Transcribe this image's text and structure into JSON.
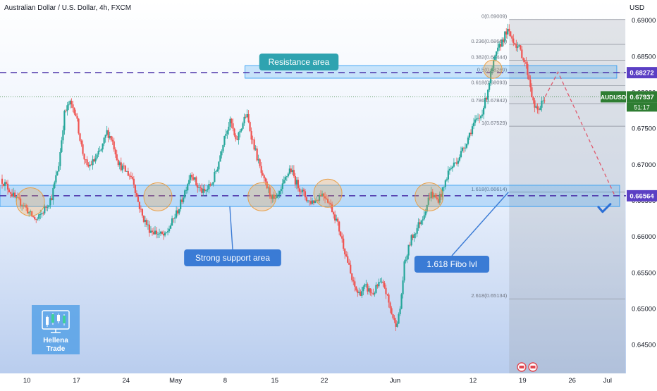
{
  "chart_data": {
    "type": "candlestick",
    "title": "Australian Dollar / U.S. Dollar, 4h, FXCM",
    "currency_label": "USD",
    "symbol": "AUDUSD",
    "y_ticks": [
      "0.69000",
      "0.68500",
      "0.68000",
      "0.67500",
      "0.67000",
      "0.66500",
      "0.66000",
      "0.65500",
      "0.65000",
      "0.64500"
    ],
    "x_ticks": [
      {
        "label": "10",
        "day": 10
      },
      {
        "label": "17",
        "day": 17
      },
      {
        "label": "24",
        "day": 24
      },
      {
        "label": "May",
        "day": 31
      },
      {
        "label": "8",
        "day": 38
      },
      {
        "label": "15",
        "day": 45
      },
      {
        "label": "22",
        "day": 52
      },
      {
        "label": "Jun",
        "day": 62
      },
      {
        "label": "12",
        "day": 73
      },
      {
        "label": "19",
        "day": 80
      },
      {
        "label": "26",
        "day": 87
      },
      {
        "label": "Jul",
        "day": 92
      }
    ],
    "price_range": [
      0.641,
      0.6928
    ],
    "day_range": [
      6.2,
      94.6
    ],
    "price_path": [
      [
        6.3,
        0.668
      ],
      [
        7.5,
        0.6665
      ],
      [
        8.5,
        0.665
      ],
      [
        9.5,
        0.6645
      ],
      [
        10.5,
        0.663
      ],
      [
        11.4,
        0.6622
      ],
      [
        12.5,
        0.6638
      ],
      [
        13.5,
        0.6655
      ],
      [
        14.5,
        0.67
      ],
      [
        15.3,
        0.677
      ],
      [
        16.0,
        0.6785
      ],
      [
        16.8,
        0.6775
      ],
      [
        17.8,
        0.672
      ],
      [
        18.5,
        0.6695
      ],
      [
        19.5,
        0.6705
      ],
      [
        20.5,
        0.672
      ],
      [
        21.3,
        0.6745
      ],
      [
        22.0,
        0.6735
      ],
      [
        23.0,
        0.67
      ],
      [
        24.0,
        0.669
      ],
      [
        25.0,
        0.668
      ],
      [
        25.5,
        0.6655
      ],
      [
        26.3,
        0.6628
      ],
      [
        27.3,
        0.661
      ],
      [
        28.3,
        0.6605
      ],
      [
        29.5,
        0.66
      ],
      [
        30.5,
        0.662
      ],
      [
        31.5,
        0.664
      ],
      [
        32.2,
        0.666
      ],
      [
        33.2,
        0.669
      ],
      [
        34.0,
        0.667
      ],
      [
        35.0,
        0.666
      ],
      [
        36.2,
        0.6675
      ],
      [
        37.0,
        0.67
      ],
      [
        38.0,
        0.6745
      ],
      [
        38.8,
        0.676
      ],
      [
        39.5,
        0.673
      ],
      [
        40.2,
        0.675
      ],
      [
        41.0,
        0.677
      ],
      [
        41.7,
        0.674
      ],
      [
        42.5,
        0.671
      ],
      [
        43.3,
        0.668
      ],
      [
        44.3,
        0.666
      ],
      [
        45.0,
        0.6648
      ],
      [
        45.8,
        0.666
      ],
      [
        46.5,
        0.668
      ],
      [
        47.2,
        0.6695
      ],
      [
        48.0,
        0.6675
      ],
      [
        49.0,
        0.666
      ],
      [
        49.8,
        0.6648
      ],
      [
        50.8,
        0.665
      ],
      [
        51.5,
        0.666
      ],
      [
        52.3,
        0.6655
      ],
      [
        53.0,
        0.664
      ],
      [
        53.8,
        0.662
      ],
      [
        54.5,
        0.6595
      ],
      [
        55.3,
        0.6565
      ],
      [
        56.0,
        0.6535
      ],
      [
        56.8,
        0.652
      ],
      [
        57.8,
        0.653
      ],
      [
        58.8,
        0.652
      ],
      [
        59.8,
        0.6535
      ],
      [
        60.5,
        0.653
      ],
      [
        61.3,
        0.65
      ],
      [
        62.0,
        0.6478
      ],
      [
        62.6,
        0.649
      ],
      [
        63.3,
        0.656
      ],
      [
        64.2,
        0.6595
      ],
      [
        65.0,
        0.661
      ],
      [
        66.0,
        0.663
      ],
      [
        67.0,
        0.666
      ],
      [
        68.0,
        0.665
      ],
      [
        68.8,
        0.6665
      ],
      [
        69.5,
        0.669
      ],
      [
        70.3,
        0.67
      ],
      [
        71.0,
        0.671
      ],
      [
        72.0,
        0.673
      ],
      [
        73.0,
        0.6755
      ],
      [
        74.0,
        0.6765
      ],
      [
        74.8,
        0.679
      ],
      [
        75.5,
        0.6825
      ],
      [
        76.2,
        0.685
      ],
      [
        77.0,
        0.687
      ],
      [
        77.8,
        0.6885
      ],
      [
        78.5,
        0.6875
      ],
      [
        79.2,
        0.6865
      ],
      [
        79.8,
        0.6855
      ],
      [
        80.4,
        0.684
      ],
      [
        81.0,
        0.6815
      ],
      [
        81.5,
        0.6785
      ],
      [
        82.0,
        0.6773
      ],
      [
        82.6,
        0.6782
      ],
      [
        83.2,
        0.6794
      ]
    ],
    "fib_levels": [
      {
        "label": "0(0.69009)",
        "price": 0.69009
      },
      {
        "label": "0.236(0.68664)",
        "price": 0.68664
      },
      {
        "label": "0.382(0.68444)",
        "price": 0.68444
      },
      {
        "label": "0.5(0.68269)",
        "price": 0.68269
      },
      {
        "label": "0.618(0.68093)",
        "price": 0.68093
      },
      {
        "label": "0.786(0.67842)",
        "price": 0.67842
      },
      {
        "label": "1(0.67529)",
        "price": 0.67529
      },
      {
        "label": "1.618(0.66614)",
        "price": 0.66614
      },
      {
        "label": "2.618(0.65134)",
        "price": 0.65134
      }
    ],
    "resistance_zone": [
      0.68195,
      0.6837
    ],
    "support_zone": [
      0.66415,
      0.6671
    ],
    "resistance_line": 0.68272,
    "support_line": 0.66564,
    "current_price": 0.67937,
    "price_tags": [
      {
        "price": 0.68272,
        "label": "0.68272",
        "color": "#5b3fc4"
      },
      {
        "price": 0.67937,
        "label": "0.67937",
        "color": "#2e7d32"
      },
      {
        "price": 0.66564,
        "label": "0.66564",
        "color": "#5b3fc4"
      }
    ],
    "countdown": "51:17",
    "forecast_path": [
      [
        83.2,
        0.6794
      ],
      [
        85.0,
        0.6828
      ],
      [
        93.0,
        0.6657
      ]
    ],
    "circles": [
      [
        10.5,
        0.6648
      ],
      [
        28.5,
        0.6655
      ],
      [
        43.2,
        0.6655
      ],
      [
        52.5,
        0.666
      ],
      [
        66.8,
        0.6655
      ],
      [
        75.8,
        0.6832
      ]
    ],
    "annotations": {
      "resistance": "Resistance area",
      "support": "Strong support area",
      "fibo": "1.618 Fibo lvl"
    },
    "watermark": {
      "line1": "Hellena",
      "line2": "Trade"
    },
    "colors": {
      "up": "#26a69a",
      "down": "#ef5350",
      "zone": "#2196f3",
      "dash": "#4a2fa8",
      "bubble_teal": "#2fa3b0",
      "bubble_blue": "#3a7bd5",
      "forecast": "#e05a6e",
      "check": "#2b6fd6"
    }
  }
}
